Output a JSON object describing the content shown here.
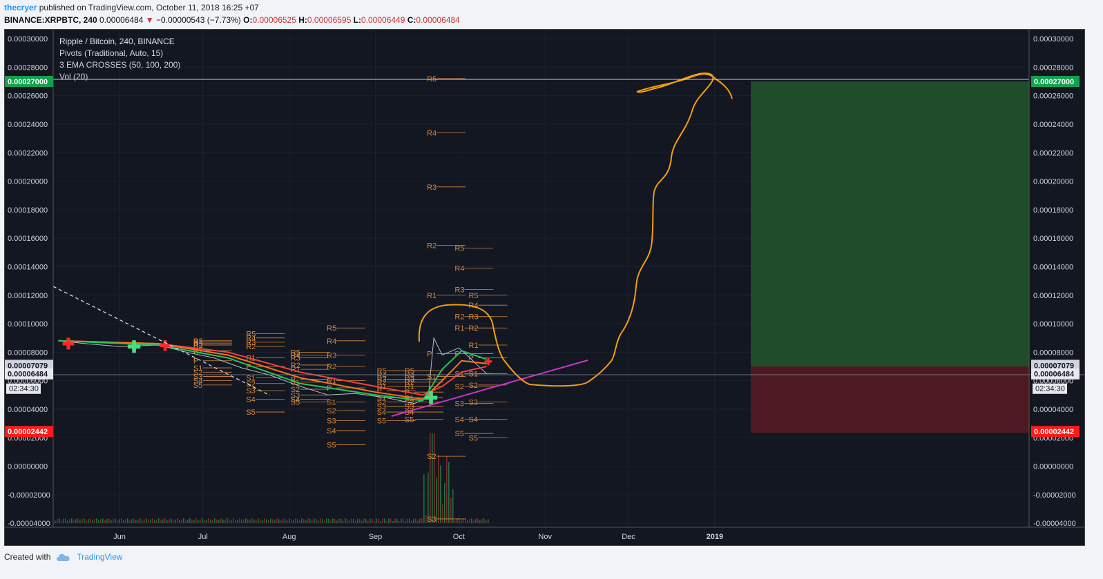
{
  "header": {
    "user": "thecryer",
    "published": "published on TradingView.com, October 11, 2018 16:25 +07",
    "symbol": "BINANCE:XRPBTC, 240",
    "price": "0.00006484",
    "change": "−0.00000543 (−7.73%)",
    "open_label": "O:",
    "open": "0.00006525",
    "high_label": "H:",
    "high": "0.00006595",
    "low_label": "L:",
    "low": "0.00006449",
    "close_label": "C:",
    "close": "0.00006484"
  },
  "legend": {
    "line1": "Ripple / Bitcoin, 240, BINANCE",
    "line2": "Pivots (Traditional, Auto, 15)",
    "line3": "3 EMA CROSSES (50, 100, 200)",
    "line4": "Vol (20)"
  },
  "footer": {
    "created": "Created with",
    "brand": "TradingView"
  },
  "colors": {
    "background": "#131722",
    "ema_fast": "#22c55e",
    "ema_mid": "#f97316",
    "ema_slow": "#ef4444",
    "pivot": "#d98a3c",
    "drawing": "#f59e0b",
    "trendline": "#cc33cc",
    "target_zone": "#1f4d2b",
    "stop_zone": "#4d1a22",
    "price_line": "#9aa0aa"
  },
  "chart_data": {
    "type": "line",
    "title": "Ripple / Bitcoin, 240, BINANCE",
    "x_labels": [
      "Jun",
      "Jul",
      "Aug",
      "Sep",
      "Oct",
      "Nov",
      "Dec",
      "2019"
    ],
    "y_ticks": [
      "0.00030000",
      "0.00028000",
      "0.00026000",
      "0.00024000",
      "0.00022000",
      "0.00020000",
      "0.00018000",
      "0.00016000",
      "0.00014000",
      "0.00012000",
      "0.00010000",
      "0.00008000",
      "0.00006000",
      "0.00004000",
      "0.00002000",
      "0.00000000",
      "-0.00002000",
      "-0.00004000"
    ],
    "ylim": [
      -4e-05,
      0.00031
    ],
    "price_labels": {
      "target": "0.00027000",
      "entry": "0.00007079",
      "last": "0.00006484",
      "countdown": "02:34:30",
      "stop": "0.00002442"
    },
    "series": [
      {
        "name": "price",
        "x": [
          "2018-05-10",
          "2018-05-20",
          "2018-06-01",
          "2018-06-15",
          "2018-06-25",
          "2018-07-05",
          "2018-07-15",
          "2018-07-25",
          "2018-08-05",
          "2018-08-15",
          "2018-08-25",
          "2018-09-05",
          "2018-09-15",
          "2018-09-20",
          "2018-09-22",
          "2018-09-25",
          "2018-10-01",
          "2018-10-05",
          "2018-10-11"
        ],
        "values": [
          8.8e-05,
          8.6e-05,
          8.4e-05,
          8.5e-05,
          8e-05,
          7.6e-05,
          6.9e-05,
          6.4e-05,
          5.6e-05,
          5e-05,
          5.1e-05,
          4.8e-05,
          4.4e-05,
          4.8e-05,
          9e-05,
          7.8e-05,
          8.3e-05,
          7.6e-05,
          6.48e-05
        ]
      },
      {
        "name": "EMA 50",
        "x": [
          "2018-05-10",
          "2018-06-15",
          "2018-07-10",
          "2018-08-05",
          "2018-09-01",
          "2018-09-18",
          "2018-09-25",
          "2018-10-02",
          "2018-10-11"
        ],
        "values": [
          8.8e-05,
          8.5e-05,
          7.6e-05,
          5.8e-05,
          5e-05,
          4.6e-05,
          6.8e-05,
          8.1e-05,
          7.5e-05
        ]
      },
      {
        "name": "EMA 100",
        "x": [
          "2018-05-10",
          "2018-06-15",
          "2018-07-10",
          "2018-08-05",
          "2018-09-01",
          "2018-09-18",
          "2018-09-25",
          "2018-10-02",
          "2018-10-11"
        ],
        "values": [
          8.8e-05,
          8.6e-05,
          7.8e-05,
          6.2e-05,
          5.2e-05,
          4.7e-05,
          6e-05,
          7.4e-05,
          7.2e-05
        ]
      },
      {
        "name": "EMA 200",
        "x": [
          "2018-05-10",
          "2018-06-15",
          "2018-07-10",
          "2018-08-05",
          "2018-09-01",
          "2018-09-18",
          "2018-09-25",
          "2018-10-02",
          "2018-10-11"
        ],
        "values": [
          8.8e-05,
          8.6e-05,
          8e-05,
          6.6e-05,
          5.6e-05,
          5e-05,
          5.6e-05,
          6.6e-05,
          7e-05
        ]
      }
    ],
    "pivot_label_sets": [
      {
        "labels": [
          "R2",
          "R1",
          "P",
          "S1",
          "S2",
          "S3",
          "S4",
          "S5"
        ]
      },
      {
        "labels": [
          "R5",
          "R4",
          "R3",
          "R2",
          "R1",
          "P",
          "S1",
          "S2",
          "S3",
          "S4",
          "S5"
        ]
      }
    ],
    "pivot_groups": [
      {
        "x": "2018-07-01",
        "r5": 8.8e-05,
        "r4": 8.7e-05,
        "r3": 8.6e-05,
        "r2": 8.5e-05,
        "r1": 8.1e-05,
        "p": 7.4e-05,
        "s1": 6.9e-05,
        "s2": 6.6e-05,
        "s3": 6.3e-05,
        "s4": 6e-05,
        "s5": 5.7e-05
      },
      {
        "x": "2018-07-20",
        "r5": 9.3e-05,
        "r4": 9e-05,
        "r3": 8.7e-05,
        "r2": 8.4e-05,
        "r1": 7.6e-05,
        "p": 7e-05,
        "s1": 6.2e-05,
        "s2": 5.8e-05,
        "s3": 5.3e-05,
        "s4": 4.7e-05,
        "s5": 3.8e-05
      },
      {
        "x": "2018-08-05",
        "r5": 8e-05,
        "r4": 7.8e-05,
        "r3": 7.6e-05,
        "r2": 7.1e-05,
        "r1": 6.8e-05,
        "p": 6.1e-05,
        "s1": 5.9e-05,
        "s2": 5.4e-05,
        "s3": 5e-05,
        "s4": 4.7e-05,
        "s5": 4.5e-05
      },
      {
        "x": "2018-08-18",
        "r5": 9.7e-05,
        "r4": 8.8e-05,
        "r3": 7.8e-05,
        "r2": 7e-05,
        "r1": 6e-05,
        "p": 5.5e-05,
        "s1": 4.5e-05,
        "s2": 3.9e-05,
        "s3": 3.2e-05,
        "s4": 2.5e-05,
        "s5": 1.5e-05
      },
      {
        "x": "2018-09-05",
        "r5": 6.7e-05,
        "r4": 6.4e-05,
        "r3": 6.1e-05,
        "r2": 5.9e-05,
        "r1": 5.6e-05,
        "p": 5.3e-05,
        "s1": 4.8e-05,
        "s2": 4.5e-05,
        "s3": 4.2e-05,
        "s4": 3.8e-05,
        "s5": 3.2e-05
      },
      {
        "x": "2018-09-15",
        "r5": 6.7e-05,
        "r4": 6.4e-05,
        "r3": 6.1e-05,
        "r2": 5.9e-05,
        "r1": 5.6e-05,
        "p": 5.2e-05,
        "s1": 4.8e-05,
        "s2": 4.5e-05,
        "s3": 4.2e-05,
        "s4": 3.8e-05,
        "s5": 3.3e-05
      },
      {
        "x": "2018-09-23",
        "r5": 0.000272,
        "r4": 0.000234,
        "r3": 0.000196,
        "r2": 0.000155,
        "r1": 0.00012,
        "p": 7.9e-05,
        "s1": 6.3e-05,
        "s2": 7e-06,
        "s3": -3.7e-05
      },
      {
        "x": "2018-10-03",
        "r5": 0.000153,
        "r4": 0.000139,
        "r3": 0.000124,
        "r2": 0.000105,
        "r1": 9.7e-05,
        "p": 7.9e-05,
        "s1": 6.5e-05,
        "s2": 5.6e-05,
        "s3": 4.4e-05,
        "s4": 3.3e-05,
        "s5": 2.3e-05
      },
      {
        "x": "2018-10-08",
        "r5": 0.00012,
        "r4": 0.000113,
        "r3": 0.000105,
        "r2": 9.7e-05,
        "r1": 8.5e-05,
        "p": 7.6e-05,
        "s1": 6.5e-05,
        "s2": 5.7e-05,
        "s3": 4.5e-05,
        "s4": 3.3e-05,
        "s5": 2e-05
      }
    ]
  }
}
